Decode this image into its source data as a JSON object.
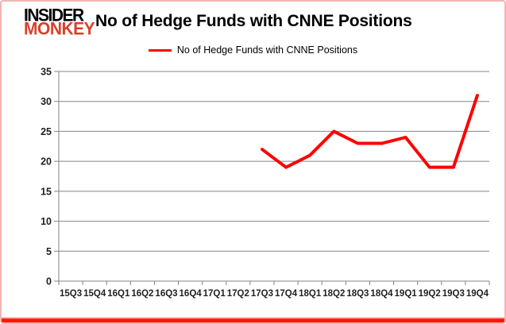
{
  "branding": {
    "logo_line1": "INSIDER",
    "logo_line2": "MONKEY"
  },
  "header": {
    "title": "No of Hedge Funds with CNNE Positions"
  },
  "legend": {
    "label": "No of Hedge Funds with CNNE Positions",
    "line_color": "#ff0000"
  },
  "colors": {
    "series_red": "#ff0000",
    "logo_red": "#d8402c",
    "gridline_gray": "#848484",
    "axis_label": "#1f1f1f",
    "frame_border_pink": "#f2b5b2"
  },
  "chart_data": {
    "type": "line",
    "title": "No of Hedge Funds with CNNE Positions",
    "categories": [
      "15Q3",
      "15Q4",
      "16Q1",
      "16Q2",
      "16Q3",
      "16Q4",
      "17Q1",
      "17Q2",
      "17Q3",
      "17Q4",
      "18Q1",
      "18Q2",
      "18Q3",
      "18Q4",
      "19Q1",
      "19Q2",
      "19Q3",
      "19Q4"
    ],
    "series": [
      {
        "name": "No of Hedge Funds with CNNE Positions",
        "color": "#ff0000",
        "values": [
          null,
          null,
          null,
          null,
          null,
          null,
          null,
          null,
          22,
          19,
          21,
          25,
          23,
          23,
          24,
          19,
          19,
          31
        ]
      }
    ],
    "y_ticks": [
      0,
      5,
      10,
      15,
      20,
      25,
      30,
      35
    ],
    "ylim": [
      0,
      35
    ],
    "xlabel": "",
    "ylabel": "",
    "grid": true,
    "legend_position": "top"
  }
}
